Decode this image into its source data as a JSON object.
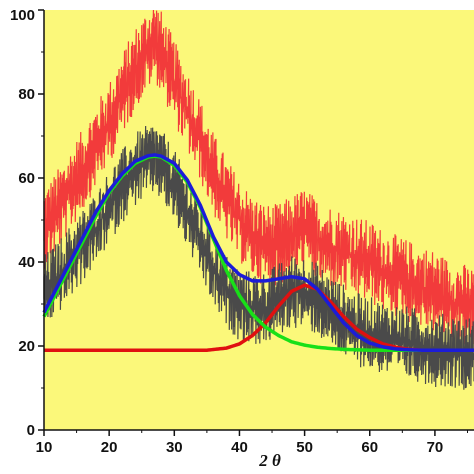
{
  "chart_data": {
    "type": "line",
    "title": "",
    "xlabel": "2 θ",
    "ylabel": "",
    "xlim": [
      10,
      76
    ],
    "ylim": [
      0,
      100
    ],
    "x_ticks": [
      10,
      20,
      30,
      40,
      50,
      60,
      70
    ],
    "y_ticks": [
      0,
      20,
      40,
      60,
      80,
      100
    ],
    "grid": false,
    "legend": "none",
    "background_color": "#FBF87A",
    "series": [
      {
        "color": "#F23B3B",
        "style": "noisy-fill",
        "x": [
          10,
          12,
          14,
          16,
          18,
          20,
          22,
          24,
          26,
          27,
          28,
          30,
          32,
          34,
          36,
          38,
          40,
          42,
          44,
          46,
          48,
          50,
          52,
          55,
          58,
          60,
          62,
          65,
          68,
          70,
          72,
          76
        ],
        "values": [
          48,
          52,
          57,
          62,
          68,
          73,
          80,
          86,
          91,
          93,
          90,
          83,
          76,
          69,
          61,
          55,
          50,
          46,
          44,
          44,
          46,
          48,
          45,
          43,
          41,
          40,
          38,
          36,
          34,
          33,
          31,
          29
        ],
        "noise": 9
      },
      {
        "color": "#4A4A4A",
        "style": "noisy-fill",
        "x": [
          10,
          12,
          14,
          16,
          18,
          20,
          22,
          24,
          26,
          27,
          28,
          30,
          32,
          34,
          36,
          38,
          40,
          42,
          44,
          46,
          48,
          50,
          52,
          55,
          58,
          60,
          62,
          65,
          68,
          70,
          72,
          76
        ],
        "values": [
          33,
          36,
          40,
          44,
          48,
          53,
          58,
          62,
          64,
          65,
          63,
          58,
          52,
          45,
          38,
          33,
          30,
          29,
          29,
          31,
          33,
          33,
          31,
          27,
          24,
          23,
          22,
          21,
          20,
          19,
          19,
          18
        ],
        "noise": 8
      },
      {
        "color": "#E01010",
        "style": "line",
        "x": [
          10,
          20,
          30,
          35,
          38,
          40,
          42,
          44,
          46,
          48,
          50,
          52,
          54,
          56,
          58,
          60,
          62,
          64,
          66,
          68,
          70,
          72,
          76
        ],
        "values": [
          19,
          19,
          19,
          19,
          19.5,
          20.5,
          22.5,
          25.5,
          29.5,
          33,
          34.5,
          33.5,
          30.5,
          27,
          24,
          22,
          20.5,
          19.7,
          19.2,
          19,
          19,
          19,
          19
        ]
      },
      {
        "color": "#18E018",
        "style": "line",
        "x": [
          10,
          12,
          14,
          16,
          18,
          20,
          22,
          24,
          26,
          27,
          28,
          30,
          32,
          34,
          36,
          38,
          40,
          42,
          44,
          46,
          48,
          50,
          52,
          54,
          56,
          58,
          60,
          62,
          64,
          66,
          68
        ],
        "values": [
          27,
          33,
          39,
          45,
          51,
          56.5,
          60.5,
          63.5,
          65,
          65.2,
          65,
          63,
          59,
          53,
          45.5,
          38,
          32,
          27.5,
          24.5,
          22.5,
          21,
          20.2,
          19.7,
          19.4,
          19.2,
          19.1,
          19,
          19,
          19,
          19,
          19
        ]
      },
      {
        "color": "#1C1CD8",
        "style": "line",
        "x": [
          10,
          12,
          14,
          16,
          18,
          20,
          22,
          24,
          26,
          27,
          28,
          30,
          32,
          34,
          36,
          38,
          40,
          42,
          44,
          46,
          48,
          50,
          52,
          54,
          56,
          58,
          60,
          62,
          64,
          66,
          68,
          70,
          72,
          76
        ],
        "values": [
          28,
          34,
          40,
          46,
          52,
          57,
          61,
          64,
          65.3,
          65.5,
          65.2,
          63.5,
          59.5,
          53.5,
          46,
          40,
          37,
          35.5,
          35.5,
          36,
          36.5,
          36,
          33.5,
          29.5,
          25.5,
          22.5,
          20.7,
          19.8,
          19.3,
          19.1,
          19,
          19,
          19,
          19
        ]
      }
    ]
  }
}
